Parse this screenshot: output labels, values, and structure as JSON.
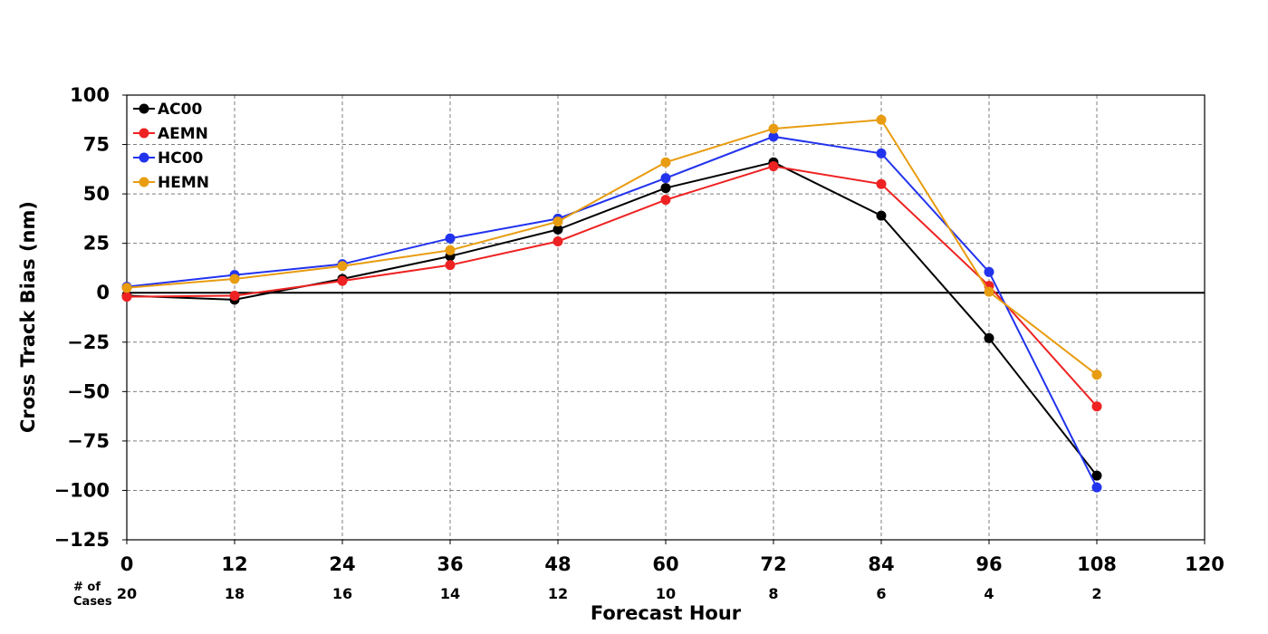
{
  "chart_data": {
    "type": "line",
    "xlabel": "Forecast Hour",
    "ylabel": "Cross Track Bias (nm)",
    "xlim": [
      0,
      120
    ],
    "ylim": [
      -125,
      100
    ],
    "x_ticks": [
      0,
      12,
      24,
      36,
      48,
      60,
      72,
      84,
      96,
      108,
      120
    ],
    "x_tick_labels": [
      "0",
      "12",
      "24",
      "36",
      "48",
      "60",
      "72",
      "84",
      "96",
      "108",
      "120"
    ],
    "y_ticks": [
      100,
      75,
      50,
      25,
      0,
      -25,
      -50,
      -75,
      -100,
      -125
    ],
    "y_tick_labels": [
      "100",
      "75",
      "50",
      "25",
      "0",
      "−25",
      "−50",
      "−75",
      "−100",
      "−125"
    ],
    "grid": true,
    "legend_position": "top-left",
    "x": [
      0,
      12,
      24,
      36,
      48,
      60,
      72,
      84,
      96,
      108
    ],
    "series": [
      {
        "name": "AC00",
        "color": "#000000",
        "values": [
          -1.5,
          -3.5,
          7,
          18.5,
          32,
          53,
          66,
          39,
          -23,
          -92.5
        ]
      },
      {
        "name": "AEMN",
        "color": "#ee2222",
        "values": [
          -2,
          -1.5,
          6,
          14,
          26,
          47,
          64,
          55,
          3.5,
          -57.5
        ]
      },
      {
        "name": "HC00",
        "color": "#2233ee",
        "values": [
          3,
          9,
          14.5,
          27.5,
          37.5,
          58,
          79,
          70.5,
          10.5,
          -98.5
        ]
      },
      {
        "name": "HEMN",
        "color": "#e89c10",
        "values": [
          2.5,
          7,
          13.5,
          21.5,
          36,
          66,
          83,
          87.5,
          0.5,
          -41.5
        ]
      }
    ],
    "cases": {
      "title_line1": "# of",
      "title_line2": "Cases",
      "x": [
        0,
        12,
        24,
        36,
        48,
        60,
        72,
        84,
        96,
        108
      ],
      "labels": [
        "20",
        "18",
        "16",
        "14",
        "12",
        "10",
        "8",
        "6",
        "4",
        "2"
      ]
    }
  }
}
